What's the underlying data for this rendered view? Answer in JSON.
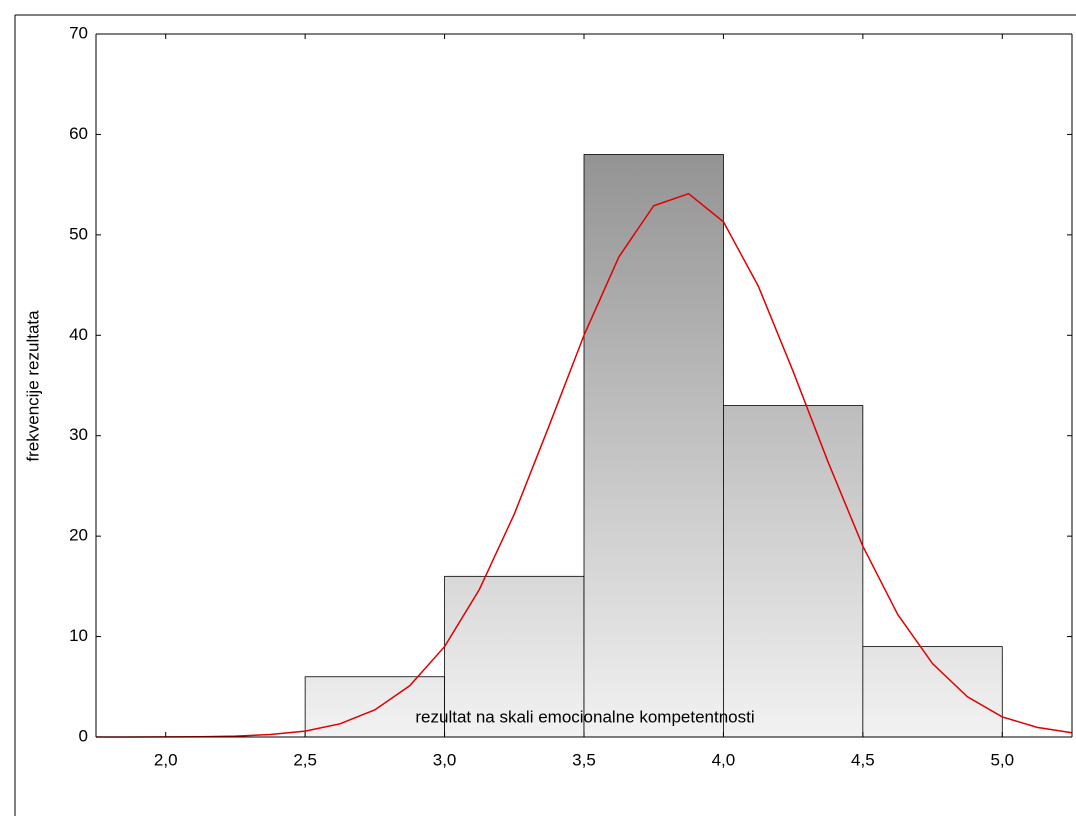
{
  "chart_data": {
    "type": "histogram",
    "xlabel": "rezultat na skali emocionalne kompetentnosti",
    "ylabel": "frekvencije rezultata",
    "bins": [
      2.5,
      3.0,
      3.5,
      4.0,
      4.5,
      5.0
    ],
    "values": [
      6,
      16,
      58,
      33,
      9
    ],
    "color": "#a0a0a0",
    "curve": {
      "color": "#e00000",
      "x": [
        1.75,
        1.875,
        2.0,
        2.125,
        2.25,
        2.375,
        2.5,
        2.625,
        2.75,
        2.875,
        3.0,
        3.125,
        3.25,
        3.375,
        3.5,
        3.625,
        3.75,
        3.875,
        4.0,
        4.125,
        4.25,
        4.375,
        4.5,
        4.625,
        4.75,
        4.875,
        5.0,
        5.125,
        5.25
      ],
      "values": [
        0.0,
        0.0,
        0.01,
        0.03,
        0.09,
        0.25,
        0.59,
        1.31,
        2.7,
        5.1,
        9.0,
        14.7,
        22.2,
        31.0,
        40.0,
        47.8,
        52.9,
        54.1,
        51.3,
        44.9,
        36.4,
        27.4,
        19.0,
        12.2,
        7.3,
        4.0,
        2.0,
        0.96,
        0.42
      ]
    },
    "xlim": [
      1.75,
      5.25
    ],
    "xticks": [
      {
        "value": 2.0,
        "label": "2,0"
      },
      {
        "value": 2.5,
        "label": "2,5"
      },
      {
        "value": 3.0,
        "label": "3,0"
      },
      {
        "value": 3.5,
        "label": "3,5"
      },
      {
        "value": 4.0,
        "label": "4,0"
      },
      {
        "value": 4.5,
        "label": "4,5"
      },
      {
        "value": 5.0,
        "label": "5,0"
      }
    ],
    "ylim": [
      0,
      70
    ],
    "yticks": [
      0,
      10,
      20,
      30,
      40,
      50,
      60,
      70
    ],
    "grid": true
  }
}
